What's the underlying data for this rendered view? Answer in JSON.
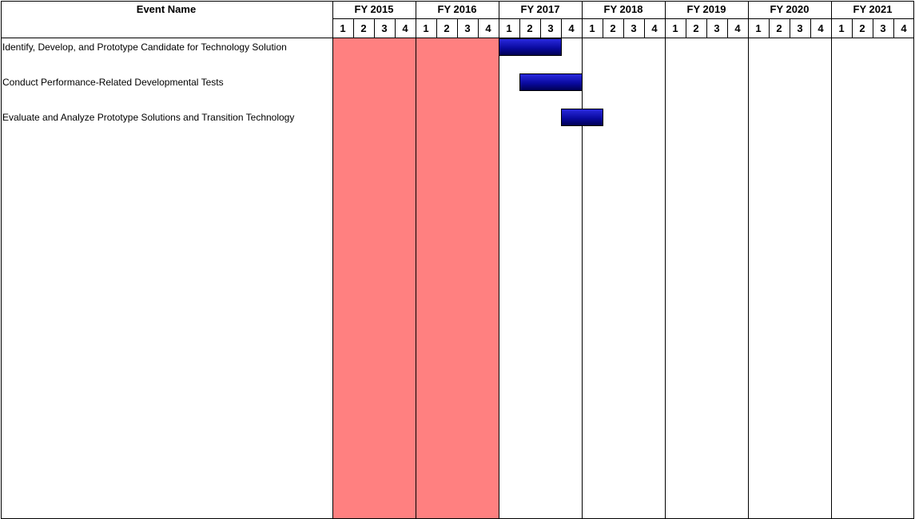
{
  "chart_data": {
    "type": "gantt",
    "header": {
      "event_name_label": "Event Name"
    },
    "years": [
      "FY 2015",
      "FY 2016",
      "FY 2017",
      "FY 2018",
      "FY 2019",
      "FY 2020",
      "FY 2021"
    ],
    "quarter_labels": [
      "1",
      "2",
      "3",
      "4"
    ],
    "shaded_years": [
      "FY 2015",
      "FY 2016"
    ],
    "colors": {
      "shade": "#ff8080",
      "bar": "#0a0aa0",
      "bar_light": "#2a2ae0",
      "grid": "#000000"
    },
    "tasks": [
      {
        "name": "Identify, Develop, and Prototype Candidate for Technology Solution",
        "start": {
          "year": "FY 2017",
          "quarter": 1
        },
        "end": {
          "year": "FY 2017",
          "quarter": 3
        }
      },
      {
        "name": "Conduct Performance-Related Developmental Tests",
        "start": {
          "year": "FY 2017",
          "quarter": 2
        },
        "end": {
          "year": "FY 2017",
          "quarter": 4
        }
      },
      {
        "name": "Evaluate and Analyze Prototype Solutions and Transition Technology",
        "start": {
          "year": "FY 2017",
          "quarter": 4
        },
        "end": {
          "year": "FY 2018",
          "quarter": 1
        }
      }
    ]
  }
}
